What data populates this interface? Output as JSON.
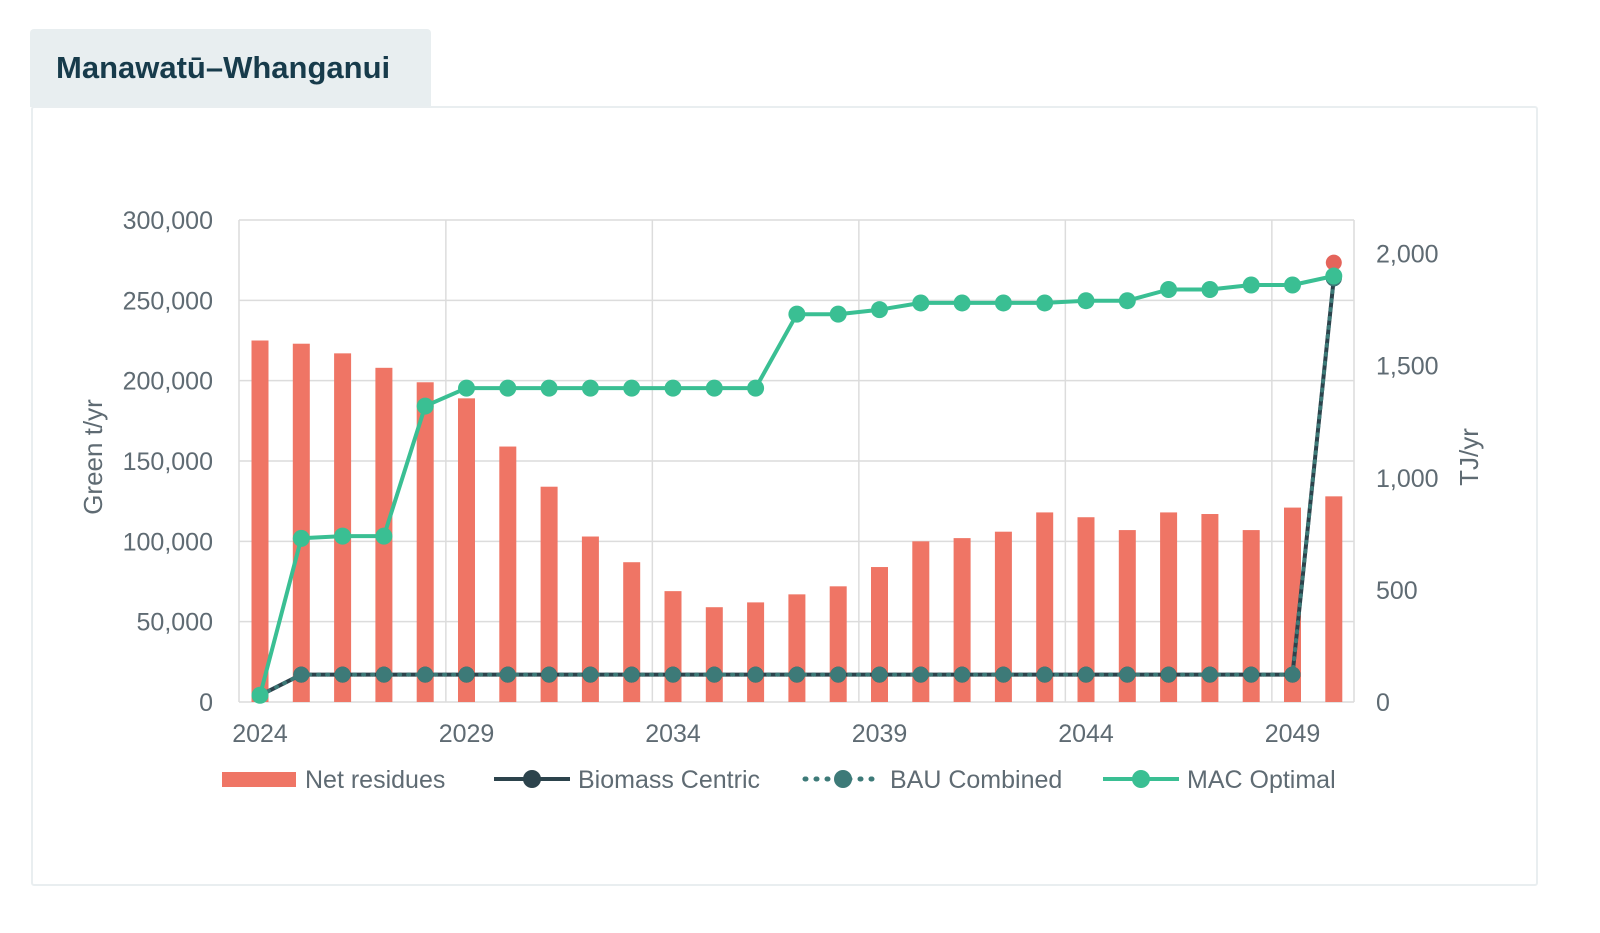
{
  "region_title": "Manawatū–Whanganui",
  "chart_data": {
    "type": "bar",
    "title": "Manawatū–Whanganui",
    "x": [
      2024,
      2025,
      2026,
      2027,
      2028,
      2029,
      2030,
      2031,
      2032,
      2033,
      2034,
      2035,
      2036,
      2037,
      2038,
      2039,
      2040,
      2041,
      2042,
      2043,
      2044,
      2045,
      2046,
      2047,
      2048,
      2049,
      2050
    ],
    "xticks": [
      "2024",
      "2029",
      "2034",
      "2039",
      "2044",
      "2049"
    ],
    "ylabel_left": "Green t/yr",
    "ylabel_right": "TJ/yr",
    "ylim_left": [
      0,
      300000
    ],
    "ylim_right": [
      0,
      2150
    ],
    "yticks_left": [
      "0",
      "50,000",
      "100,000",
      "150,000",
      "200,000",
      "250,000",
      "300,000"
    ],
    "yticks_right": [
      "0",
      "500",
      "1,000",
      "1,500",
      "2,000"
    ],
    "grid": true,
    "legend_position": "bottom",
    "series": [
      {
        "name": "Net residues",
        "type": "bar",
        "axis": "left",
        "color": "#ef7565",
        "values": [
          225000,
          223000,
          217000,
          208000,
          199000,
          189000,
          159000,
          134000,
          103000,
          87000,
          69000,
          59000,
          62000,
          67000,
          72000,
          84000,
          100000,
          102000,
          106000,
          118000,
          115000,
          107000,
          118000,
          117000,
          107000,
          121000,
          128000
        ]
      },
      {
        "name": "Biomass Centric",
        "type": "line",
        "axis": "right",
        "color": "#2c434c",
        "values": [
          30,
          122,
          122,
          122,
          122,
          122,
          122,
          122,
          122,
          122,
          122,
          122,
          122,
          122,
          122,
          122,
          122,
          122,
          122,
          122,
          122,
          122,
          122,
          122,
          122,
          122,
          1890
        ]
      },
      {
        "name": "BAU Combined",
        "type": "line-dotted",
        "axis": "right",
        "color": "#3d7a78",
        "values": [
          30,
          122,
          122,
          122,
          122,
          122,
          122,
          122,
          122,
          122,
          122,
          122,
          122,
          122,
          122,
          122,
          122,
          122,
          122,
          122,
          122,
          122,
          122,
          122,
          122,
          122,
          1890
        ]
      },
      {
        "name": "MAC Optimal",
        "type": "line",
        "axis": "right",
        "color": "#3abf93",
        "values": [
          30,
          730,
          740,
          740,
          1320,
          1400,
          1400,
          1400,
          1400,
          1400,
          1400,
          1400,
          1400,
          1730,
          1730,
          1750,
          1780,
          1780,
          1780,
          1780,
          1790,
          1790,
          1840,
          1840,
          1860,
          1860,
          1900
        ]
      }
    ],
    "annotations": [
      {
        "label": "",
        "x": 2050,
        "y_right": 1960,
        "color": "#e4645b"
      }
    ]
  }
}
